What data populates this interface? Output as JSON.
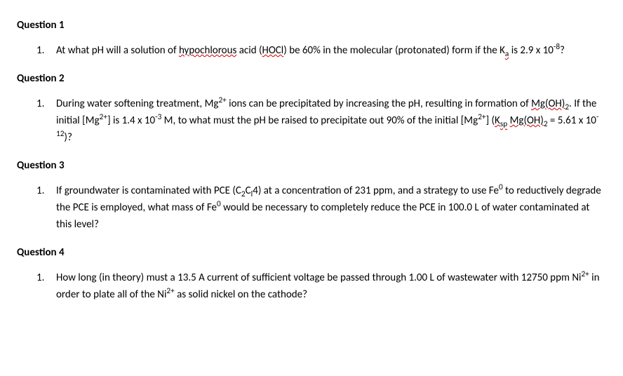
{
  "questions": [
    {
      "heading": "Question 1",
      "num": "1.",
      "parts": [
        {
          "t": "At what pH will a solution of "
        },
        {
          "t": "hypochlorous",
          "squiggle": true
        },
        {
          "t": " acid ("
        },
        {
          "t": "HOCl",
          "squiggle": true
        },
        {
          "t": ") be 60% in the molecular (protonated) form if the K"
        },
        {
          "t": "a",
          "sub": true,
          "squiggle": true
        },
        {
          "t": " is 2.9 x 10"
        },
        {
          "t": "-8",
          "sup": true
        },
        {
          "t": "?"
        }
      ]
    },
    {
      "heading": "Question 2",
      "num": "1.",
      "parts": [
        {
          "t": "During water softening treatment, Mg"
        },
        {
          "t": "2+",
          "sup": true
        },
        {
          "t": " ions can be precipitated by increasing the pH, resulting in formation of "
        },
        {
          "t": "Mg(OH)",
          "squiggle": true
        },
        {
          "t": "2",
          "sub": true
        },
        {
          "t": ". If the initial [Mg"
        },
        {
          "t": "2+",
          "sup": true
        },
        {
          "t": "] is 1.4 x 10"
        },
        {
          "t": "-3",
          "sup": true
        },
        {
          "t": " M, to what must the pH be raised to precipitate out 90% of the initial [Mg"
        },
        {
          "t": "2+",
          "sup": true
        },
        {
          "t": "] ("
        },
        {
          "t": "K",
          "squiggle": true
        },
        {
          "t": "sp",
          "sub": true,
          "squiggle": true
        },
        {
          "t": " "
        },
        {
          "t": "Mg(OH)",
          "squiggle": true
        },
        {
          "t": "2",
          "sub": true
        },
        {
          "t": " = 5.61 x 10"
        },
        {
          "t": "-12",
          "sup": true
        },
        {
          "t": ")?"
        }
      ]
    },
    {
      "heading": "Question 3",
      "num": "1.",
      "parts": [
        {
          "t": "If groundwater is contaminated with PCE (C"
        },
        {
          "t": "2",
          "sub": true
        },
        {
          "t": "C"
        },
        {
          "t": "l",
          "sub": true
        },
        {
          "t": "4) at a concentration of 231 ppm, and a strategy to use Fe"
        },
        {
          "t": "0",
          "sup": true
        },
        {
          "t": " to reductively degrade the PCE is employed, what mass of Fe"
        },
        {
          "t": "0",
          "sup": true
        },
        {
          "t": " would be necessary to completely reduce the PCE in 100.0 L of water contaminated at this level?"
        }
      ]
    },
    {
      "heading": "Question 4",
      "num": "1.",
      "parts": [
        {
          "t": "How long (in theory) must a 13.5 A current of sufficient voltage be passed through 1.00 L of wastewater with 12750 ppm Ni"
        },
        {
          "t": "2+",
          "sup": true
        },
        {
          "t": " in order to plate all of the Ni"
        },
        {
          "t": "2+",
          "sup": true
        },
        {
          "t": " as solid nickel on the cathode?"
        }
      ]
    }
  ],
  "style": {
    "font_family": "Calibri, Arial, sans-serif",
    "font_size_pt": 11,
    "text_color": "#000000",
    "background_color": "#ffffff",
    "squiggle_color": "#d00000",
    "heading_weight": "bold"
  }
}
